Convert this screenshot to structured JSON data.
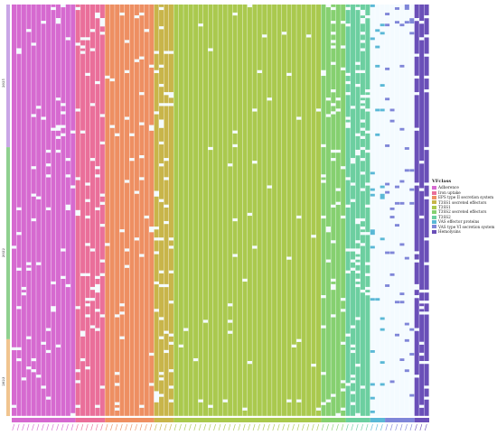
{
  "chart_data": {
    "type": "heatmap",
    "title": "",
    "legend": {
      "title": "VFclass",
      "position": "right",
      "items": [
        {
          "label": "Adherence",
          "color": "#d66ad0"
        },
        {
          "label": "Iron uptake",
          "color": "#ea6f9a"
        },
        {
          "label": "EPS type II secretion system",
          "color": "#ee8f62"
        },
        {
          "label": "T3SS1 secreted effectors",
          "color": "#c8b54a"
        },
        {
          "label": "T3SS1",
          "color": "#aac94e"
        },
        {
          "label": "T3SS2 secreted effectors",
          "color": "#86d070"
        },
        {
          "label": "T3SS2",
          "color": "#6ccfa0"
        },
        {
          "label": "VAS effector proteins",
          "color": "#5ab8d6"
        },
        {
          "label": "VAS type VI secretion system",
          "color": "#7f86d8"
        },
        {
          "label": "Hemolysins",
          "color": "#6a4fb8"
        }
      ]
    },
    "row_groups": [
      {
        "label": "2021",
        "color": "#c9a6e6"
      },
      {
        "label": "2022",
        "color": "#8fd08f"
      },
      {
        "label": "2023",
        "color": "#f1c48f"
      }
    ],
    "column_blocks": [
      {
        "class": "Adherence",
        "columns": 13
      },
      {
        "class": "Iron uptake",
        "columns": 6
      },
      {
        "class": "EPS type II secretion system",
        "columns": 10
      },
      {
        "class": "T3SS1 secreted effectors",
        "columns": 4
      },
      {
        "class": "T3SS1",
        "columns": 30
      },
      {
        "class": "T3SS2 secreted effectors",
        "columns": 5
      },
      {
        "class": "T3SS2",
        "columns": 5
      },
      {
        "class": "VAS effector proteins",
        "columns": 3
      },
      {
        "class": "VAS type VI secretion system",
        "columns": 6
      },
      {
        "class": "Hemolysins",
        "columns": 3
      }
    ],
    "x_tick_labels": "gene names (illegible at this resolution)",
    "grid": false
  }
}
